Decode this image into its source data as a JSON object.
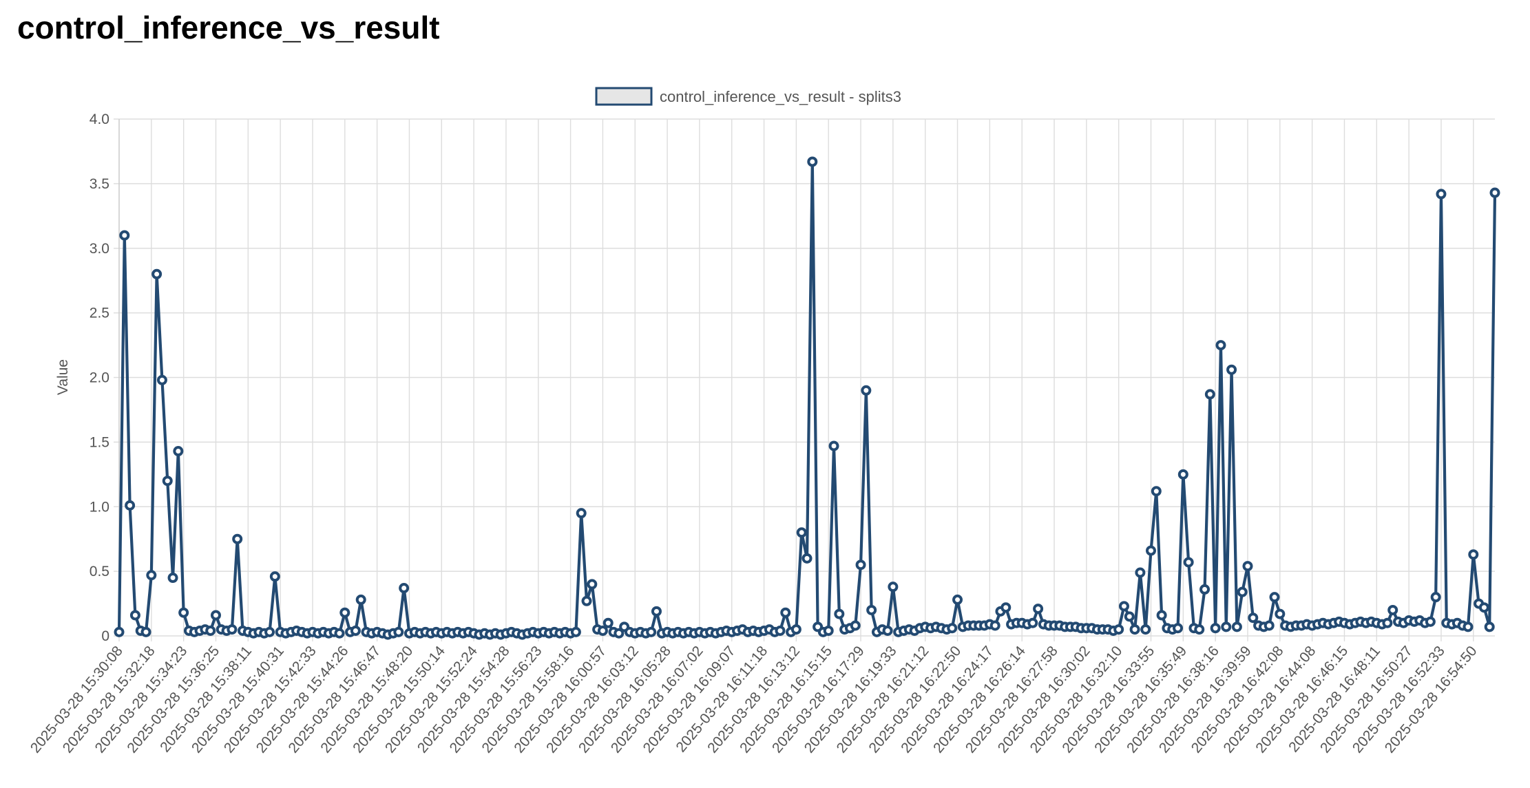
{
  "chart_data": {
    "type": "line",
    "title": "control_inference_vs_result",
    "ylabel": "Value",
    "ylim": [
      0,
      4
    ],
    "yticks": [
      0,
      0.5,
      {
        "value": 1,
        "label": "1.0"
      },
      1.5,
      {
        "value": 2,
        "label": "2.0"
      },
      2.5,
      {
        "value": 3,
        "label": "3.0"
      },
      3.5,
      {
        "value": 4,
        "label": "4.0"
      }
    ],
    "grid": true,
    "legend": "top",
    "categories": [
      "2025-03-28 15:30:08",
      null,
      null,
      null,
      null,
      null,
      "2025-03-28 15:32:18",
      null,
      null,
      null,
      null,
      null,
      "2025-03-28 15:34:23",
      null,
      null,
      null,
      null,
      null,
      "2025-03-28 15:36:25",
      null,
      null,
      null,
      null,
      null,
      "2025-03-28 15:38:11",
      null,
      null,
      null,
      null,
      null,
      "2025-03-28 15:40:31",
      null,
      null,
      null,
      null,
      null,
      "2025-03-28 15:42:33",
      null,
      null,
      null,
      null,
      null,
      "2025-03-28 15:44:26",
      null,
      null,
      null,
      null,
      null,
      "2025-03-28 15:46:47",
      null,
      null,
      null,
      null,
      null,
      "2025-03-28 15:48:20",
      null,
      null,
      null,
      null,
      null,
      "2025-03-28 15:50:14",
      null,
      null,
      null,
      null,
      null,
      "2025-03-28 15:52:24",
      null,
      null,
      null,
      null,
      null,
      "2025-03-28 15:54:28",
      null,
      null,
      null,
      null,
      null,
      "2025-03-28 15:56:23",
      null,
      null,
      null,
      null,
      null,
      "2025-03-28 15:58:16",
      null,
      null,
      null,
      null,
      null,
      "2025-03-28 16:00:57",
      null,
      null,
      null,
      null,
      null,
      "2025-03-28 16:03:12",
      null,
      null,
      null,
      null,
      null,
      "2025-03-28 16:05:28",
      null,
      null,
      null,
      null,
      null,
      "2025-03-28 16:07:02",
      null,
      null,
      null,
      null,
      null,
      "2025-03-28 16:09:07",
      null,
      null,
      null,
      null,
      null,
      "2025-03-28 16:11:18",
      null,
      null,
      null,
      null,
      null,
      "2025-03-28 16:13:12",
      null,
      null,
      null,
      null,
      null,
      "2025-03-28 16:15:15",
      null,
      null,
      null,
      null,
      null,
      "2025-03-28 16:17:29",
      null,
      null,
      null,
      null,
      null,
      "2025-03-28 16:19:33",
      null,
      null,
      null,
      null,
      null,
      "2025-03-28 16:21:12",
      null,
      null,
      null,
      null,
      null,
      "2025-03-28 16:22:50",
      null,
      null,
      null,
      null,
      null,
      "2025-03-28 16:24:17",
      null,
      null,
      null,
      null,
      null,
      "2025-03-28 16:26:14",
      null,
      null,
      null,
      null,
      null,
      "2025-03-28 16:27:58",
      null,
      null,
      null,
      null,
      null,
      "2025-03-28 16:30:02",
      null,
      null,
      null,
      null,
      null,
      "2025-03-28 16:32:10",
      null,
      null,
      null,
      null,
      null,
      "2025-03-28 16:33:55",
      null,
      null,
      null,
      null,
      null,
      "2025-03-28 16:35:49",
      null,
      null,
      null,
      null,
      null,
      "2025-03-28 16:38:16",
      null,
      null,
      null,
      null,
      null,
      "2025-03-28 16:39:59",
      null,
      null,
      null,
      null,
      null,
      "2025-03-28 16:42:08",
      null,
      null,
      null,
      null,
      null,
      "2025-03-28 16:44:08",
      null,
      null,
      null,
      null,
      null,
      "2025-03-28 16:46:15",
      null,
      null,
      null,
      null,
      null,
      "2025-03-28 16:48:11",
      null,
      null,
      null,
      null,
      null,
      "2025-03-28 16:50:27",
      null,
      null,
      null,
      null,
      null,
      "2025-03-28 16:52:33",
      null,
      null,
      null,
      null,
      null,
      "2025-03-28 16:54:50",
      null,
      null,
      null,
      null
    ],
    "series": [
      {
        "name": "control_inference_vs_result - splits3",
        "color": "#234a72",
        "values": [
          0.03,
          3.1,
          1.01,
          0.16,
          0.04,
          0.03,
          0.47,
          2.8,
          1.98,
          1.2,
          0.45,
          1.43,
          0.18,
          0.04,
          0.03,
          0.04,
          0.05,
          0.04,
          0.16,
          0.05,
          0.04,
          0.05,
          0.75,
          0.04,
          0.03,
          0.02,
          0.03,
          0.02,
          0.03,
          0.46,
          0.03,
          0.02,
          0.03,
          0.04,
          0.03,
          0.02,
          0.03,
          0.02,
          0.03,
          0.02,
          0.03,
          0.02,
          0.18,
          0.03,
          0.04,
          0.28,
          0.03,
          0.02,
          0.03,
          0.02,
          0.01,
          0.02,
          0.03,
          0.37,
          0.02,
          0.03,
          0.02,
          0.03,
          0.02,
          0.03,
          0.02,
          0.03,
          0.02,
          0.03,
          0.02,
          0.03,
          0.02,
          0.01,
          0.02,
          0.01,
          0.02,
          0.01,
          0.02,
          0.03,
          0.02,
          0.01,
          0.02,
          0.03,
          0.02,
          0.03,
          0.02,
          0.03,
          0.02,
          0.03,
          0.02,
          0.03,
          0.95,
          0.27,
          0.4,
          0.05,
          0.04,
          0.1,
          0.03,
          0.02,
          0.07,
          0.03,
          0.02,
          0.03,
          0.02,
          0.03,
          0.19,
          0.02,
          0.03,
          0.02,
          0.03,
          0.02,
          0.03,
          0.02,
          0.03,
          0.02,
          0.03,
          0.02,
          0.03,
          0.04,
          0.03,
          0.04,
          0.05,
          0.03,
          0.04,
          0.03,
          0.04,
          0.05,
          0.03,
          0.04,
          0.18,
          0.03,
          0.05,
          0.8,
          0.6,
          3.67,
          0.07,
          0.03,
          0.04,
          1.47,
          0.17,
          0.05,
          0.06,
          0.08,
          0.55,
          1.9,
          0.2,
          0.03,
          0.05,
          0.04,
          0.38,
          0.03,
          0.04,
          0.05,
          0.04,
          0.06,
          0.07,
          0.06,
          0.07,
          0.06,
          0.05,
          0.06,
          0.28,
          0.07,
          0.08,
          0.08,
          0.08,
          0.08,
          0.09,
          0.08,
          0.19,
          0.22,
          0.09,
          0.1,
          0.1,
          0.09,
          0.1,
          0.21,
          0.09,
          0.08,
          0.08,
          0.08,
          0.07,
          0.07,
          0.07,
          0.06,
          0.06,
          0.06,
          0.05,
          0.05,
          0.05,
          0.04,
          0.05,
          0.23,
          0.15,
          0.05,
          0.49,
          0.05,
          0.66,
          1.12,
          0.16,
          0.06,
          0.05,
          0.06,
          1.25,
          0.57,
          0.06,
          0.05,
          0.36,
          1.87,
          0.06,
          2.25,
          0.07,
          2.06,
          0.07,
          0.34,
          0.54,
          0.14,
          0.08,
          0.07,
          0.08,
          0.3,
          0.17,
          0.08,
          0.07,
          0.08,
          0.08,
          0.09,
          0.08,
          0.09,
          0.1,
          0.09,
          0.1,
          0.11,
          0.1,
          0.09,
          0.1,
          0.11,
          0.1,
          0.11,
          0.1,
          0.09,
          0.1,
          0.2,
          0.11,
          0.1,
          0.12,
          0.11,
          0.12,
          0.1,
          0.11,
          0.3,
          3.42,
          0.1,
          0.09,
          0.1,
          0.08,
          0.07,
          0.63,
          0.25,
          0.22,
          0.07,
          3.43
        ]
      }
    ]
  }
}
